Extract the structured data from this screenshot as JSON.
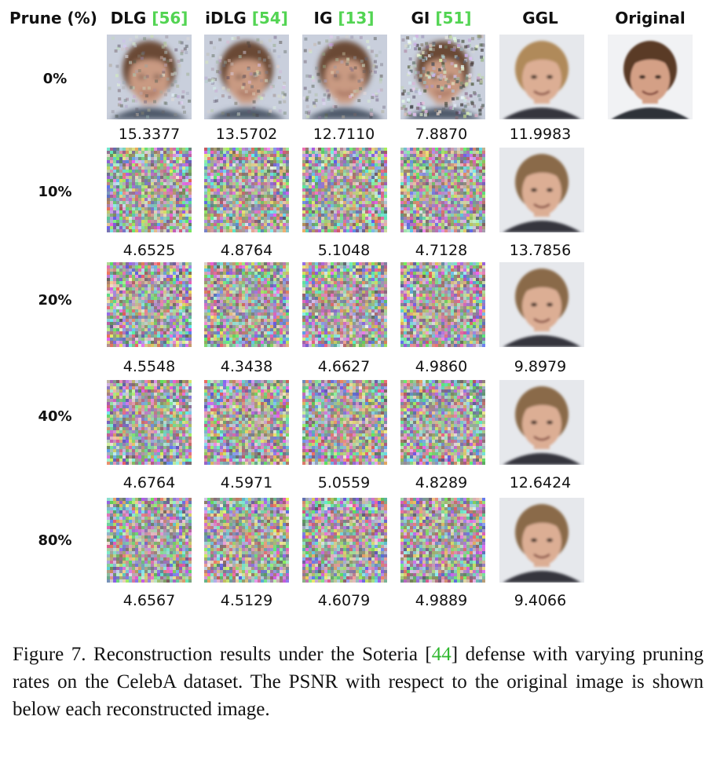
{
  "header": {
    "prune": "Prune (%)",
    "methods": [
      {
        "name": "DLG",
        "ref": "56"
      },
      {
        "name": "iDLG",
        "ref": "54"
      },
      {
        "name": "IG",
        "ref": "13"
      },
      {
        "name": "GI",
        "ref": "51"
      },
      {
        "name": "GGL",
        "ref": ""
      }
    ],
    "original": "Original"
  },
  "rows": [
    {
      "label": "0%",
      "psnr": [
        "15.3377",
        "13.5702",
        "12.7110",
        "7.8870",
        "11.9983"
      ]
    },
    {
      "label": "10%",
      "psnr": [
        "4.6525",
        "4.8764",
        "5.1048",
        "4.7128",
        "13.7856"
      ]
    },
    {
      "label": "20%",
      "psnr": [
        "4.5548",
        "4.3438",
        "4.6627",
        "4.9860",
        "9.8979"
      ]
    },
    {
      "label": "40%",
      "psnr": [
        "4.6764",
        "4.5971",
        "5.0559",
        "4.8289",
        "12.6424"
      ]
    },
    {
      "label": "80%",
      "psnr": [
        "4.6567",
        "4.5129",
        "4.6079",
        "4.9889",
        "9.4066"
      ]
    }
  ],
  "caption": {
    "lead": "Figure 7.  Reconstruction results under the Soteria [",
    "cite": "44",
    "rest": "] defense with varying pruning rates on the CelebA dataset. The PSNR with respect to the original image is shown below each reconstructed image."
  },
  "colors": {
    "ref": "#52d452",
    "cite": "#2fb82f",
    "text": "#111111"
  }
}
